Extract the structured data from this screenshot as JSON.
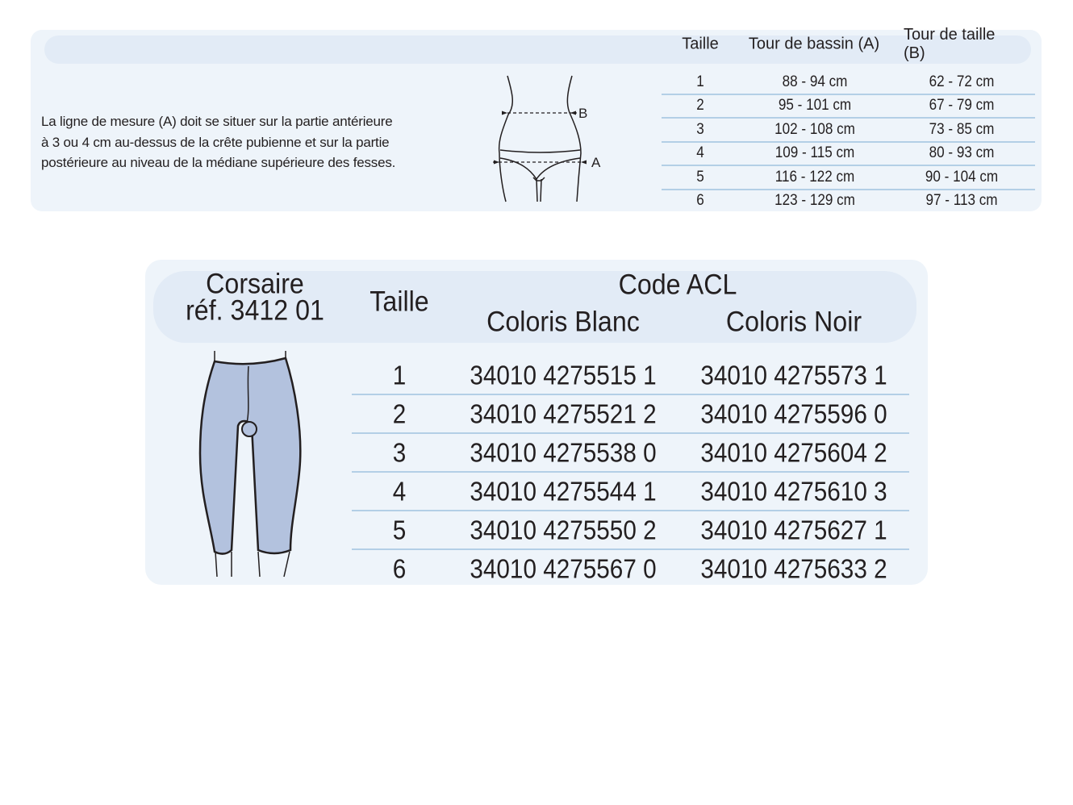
{
  "measure_table": {
    "headers": [
      "Taille",
      "Tour de bassin (A)",
      "Tour de taille (B)"
    ],
    "instructions": [
      "La ligne de mesure (A) doit se situer sur la partie antérieure",
      "à 3 ou 4 cm au-dessus de la crête pubienne et sur la partie",
      "postérieure au niveau de la médiane supérieure des fesses."
    ],
    "diagram_labels": {
      "a": "A",
      "b": "B"
    },
    "rows": [
      [
        "1",
        "88 -   94 cm",
        "62 -   72 cm"
      ],
      [
        "2",
        "95 - 101 cm",
        "67 -   79 cm"
      ],
      [
        "3",
        "102 - 108 cm",
        "73 -   85 cm"
      ],
      [
        "4",
        "109 - 115 cm",
        "80 -   93 cm"
      ],
      [
        "5",
        "116 - 122 cm",
        "90 - 104 cm"
      ],
      [
        "6",
        "123 - 129 cm",
        "97 - 113 cm"
      ]
    ]
  },
  "product_table": {
    "product_name": "Corsaire",
    "product_ref": "réf. 3412 01",
    "size_header": "Taille",
    "code_header": "Code ACL",
    "color_headers": [
      "Coloris Blanc",
      "Coloris Noir"
    ],
    "garment_color": "#b3c2de",
    "rows": [
      [
        "1",
        "34010 4275515 1",
        "34010 4275573 1"
      ],
      [
        "2",
        "34010 4275521 2",
        "34010 4275596 0"
      ],
      [
        "3",
        "34010 4275538 0",
        "34010 4275604 2"
      ],
      [
        "4",
        "34010 4275544 1",
        "34010 4275610 3"
      ],
      [
        "5",
        "34010 4275550 2",
        "34010 4275627 1"
      ],
      [
        "6",
        "34010 4275567 0",
        "34010 4275633 2"
      ]
    ]
  }
}
